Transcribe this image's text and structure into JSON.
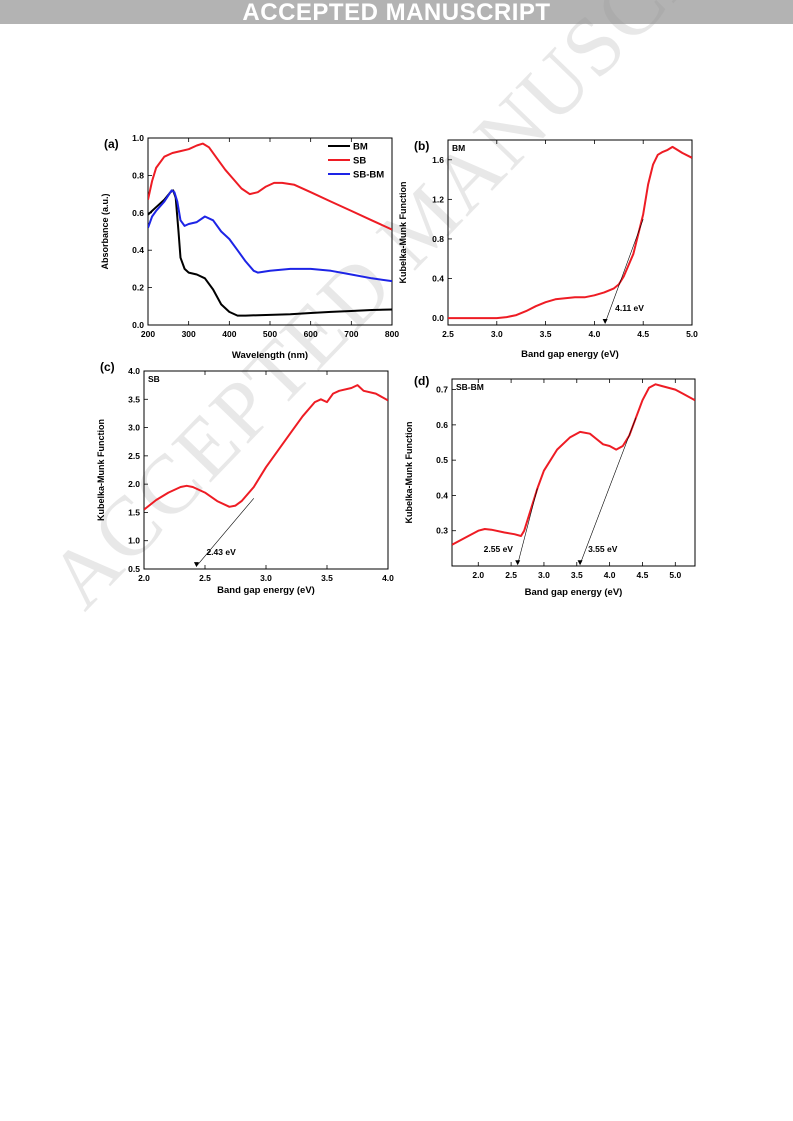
{
  "banner": "ACCEPTED MANUSCRIPT",
  "watermark": "ACCEPTED MANUSCRIPT",
  "colors": {
    "BM": "#000000",
    "SB": "#ee1c24",
    "SB-BM": "#1d24e6"
  },
  "chart_data": [
    {
      "panel": "(a)",
      "type": "line",
      "xlabel": "Wavelength (nm)",
      "ylabel": "Absorbance (a.u.)",
      "xlim": [
        200,
        800
      ],
      "ylim": [
        0.0,
        1.0
      ],
      "xticks": [
        200,
        300,
        400,
        500,
        600,
        700,
        800
      ],
      "xtick_labels": [
        "200",
        "300",
        "400",
        "500",
        "600",
        "700",
        "800"
      ],
      "yticks": [
        0.0,
        0.2,
        0.4,
        0.6,
        0.8,
        1.0
      ],
      "ytick_labels": [
        "0.0",
        "0.2",
        "0.4",
        "0.6",
        "0.8",
        "1.0"
      ],
      "legend": "top-right",
      "series": [
        {
          "name": "BM",
          "color": "#000000",
          "x": [
            200,
            210,
            220,
            240,
            255,
            262,
            268,
            275,
            280,
            290,
            300,
            320,
            340,
            360,
            380,
            400,
            420,
            440,
            480,
            550,
            600,
            650,
            700,
            750,
            800
          ],
          "y": [
            0.59,
            0.61,
            0.63,
            0.67,
            0.71,
            0.72,
            0.68,
            0.5,
            0.36,
            0.3,
            0.28,
            0.27,
            0.25,
            0.19,
            0.11,
            0.07,
            0.05,
            0.05,
            0.053,
            0.058,
            0.064,
            0.07,
            0.075,
            0.08,
            0.083
          ]
        },
        {
          "name": "SB",
          "color": "#ee1c24",
          "x": [
            200,
            210,
            220,
            240,
            260,
            280,
            300,
            320,
            335,
            350,
            370,
            390,
            410,
            430,
            450,
            470,
            490,
            510,
            530,
            560,
            600,
            650,
            700,
            750,
            800
          ],
          "y": [
            0.67,
            0.77,
            0.84,
            0.9,
            0.92,
            0.93,
            0.94,
            0.96,
            0.97,
            0.95,
            0.89,
            0.83,
            0.78,
            0.73,
            0.7,
            0.71,
            0.74,
            0.76,
            0.76,
            0.75,
            0.71,
            0.66,
            0.61,
            0.56,
            0.51
          ]
        },
        {
          "name": "SB-BM",
          "color": "#1d24e6",
          "x": [
            200,
            210,
            220,
            240,
            258,
            265,
            272,
            280,
            290,
            300,
            320,
            340,
            360,
            380,
            400,
            420,
            440,
            460,
            470,
            500,
            550,
            600,
            650,
            700,
            750,
            800
          ],
          "y": [
            0.52,
            0.58,
            0.61,
            0.66,
            0.72,
            0.71,
            0.66,
            0.56,
            0.53,
            0.54,
            0.55,
            0.58,
            0.56,
            0.5,
            0.46,
            0.4,
            0.34,
            0.29,
            0.28,
            0.29,
            0.3,
            0.3,
            0.29,
            0.27,
            0.25,
            0.235
          ]
        }
      ]
    },
    {
      "panel": "(b)",
      "label": "BM",
      "type": "line",
      "xlabel": "Band gap energy (eV)",
      "ylabel": "Kubelka-Munk Function",
      "xlim": [
        2.5,
        5.0
      ],
      "ylim": [
        -0.07,
        1.8
      ],
      "xticks": [
        2.5,
        3.0,
        3.5,
        4.0,
        4.5,
        5.0
      ],
      "xtick_labels": [
        "2.5",
        "3.0",
        "3.5",
        "4.0",
        "4.5",
        "5.0"
      ],
      "yticks": [
        0.0,
        0.4,
        0.8,
        1.2,
        1.6
      ],
      "ytick_labels": [
        "0.0",
        "0.4",
        "0.8",
        "1.2",
        "1.6"
      ],
      "annotations": [
        {
          "text": "4.11 eV",
          "x": 4.11
        }
      ],
      "tangents": [
        {
          "from": [
            4.11,
            -0.05
          ],
          "to": [
            4.5,
            1.0
          ]
        }
      ],
      "series": [
        {
          "name": "",
          "color": "#ee1c24",
          "x": [
            2.5,
            2.8,
            3.0,
            3.1,
            3.2,
            3.3,
            3.4,
            3.5,
            3.6,
            3.7,
            3.8,
            3.9,
            4.0,
            4.1,
            4.2,
            4.25,
            4.3,
            4.4,
            4.5,
            4.55,
            4.6,
            4.65,
            4.7,
            4.75,
            4.8,
            4.85,
            4.9,
            5.0
          ],
          "y": [
            0.0,
            0.0,
            0.0,
            0.01,
            0.03,
            0.07,
            0.12,
            0.16,
            0.19,
            0.2,
            0.21,
            0.21,
            0.23,
            0.26,
            0.3,
            0.34,
            0.42,
            0.65,
            1.05,
            1.35,
            1.55,
            1.65,
            1.68,
            1.7,
            1.73,
            1.7,
            1.67,
            1.62
          ]
        }
      ]
    },
    {
      "panel": "(c)",
      "label": "SB",
      "type": "line",
      "xlabel": "Band gap energy (eV)",
      "ylabel": "Kubelka-Munk Function",
      "xlim": [
        2.0,
        4.0
      ],
      "ylim": [
        0.5,
        4.0
      ],
      "xticks": [
        2.0,
        2.5,
        3.0,
        3.5,
        4.0
      ],
      "xtick_labels": [
        "2.0",
        "2.5",
        "3.0",
        "3.5",
        "4.0"
      ],
      "yticks": [
        0.5,
        1.0,
        1.5,
        2.0,
        2.5,
        3.0,
        3.5,
        4.0
      ],
      "ytick_labels": [
        "0.5",
        "1.0",
        "1.5",
        "2.0",
        "2.5",
        "3.0",
        "3.5",
        "4.0"
      ],
      "annotations": [
        {
          "text": "2.43 eV",
          "x": 2.43
        }
      ],
      "tangents": [
        {
          "from": [
            2.43,
            0.55
          ],
          "to": [
            2.9,
            1.75
          ]
        }
      ],
      "series": [
        {
          "name": "",
          "color": "#ee1c24",
          "x": [
            2.0,
            2.1,
            2.2,
            2.3,
            2.35,
            2.4,
            2.5,
            2.6,
            2.7,
            2.75,
            2.8,
            2.9,
            3.0,
            3.1,
            3.2,
            3.3,
            3.4,
            3.45,
            3.5,
            3.55,
            3.6,
            3.7,
            3.75,
            3.8,
            3.9,
            4.0
          ],
          "y": [
            1.55,
            1.72,
            1.85,
            1.95,
            1.97,
            1.95,
            1.85,
            1.7,
            1.6,
            1.62,
            1.7,
            1.95,
            2.3,
            2.6,
            2.9,
            3.2,
            3.45,
            3.5,
            3.45,
            3.6,
            3.65,
            3.7,
            3.75,
            3.65,
            3.6,
            3.48
          ]
        }
      ]
    },
    {
      "panel": "(d)",
      "label": "SB-BM",
      "type": "line",
      "xlabel": "Band gap energy (eV)",
      "ylabel": "Kubelka-Munk Function",
      "xlim": [
        1.6,
        5.3
      ],
      "ylim": [
        0.2,
        0.73
      ],
      "xticks": [
        2.0,
        2.5,
        3.0,
        3.5,
        4.0,
        4.5,
        5.0
      ],
      "xtick_labels": [
        "2.0",
        "2.5",
        "3.0",
        "3.5",
        "4.0",
        "4.5",
        "5.0"
      ],
      "yticks": [
        0.3,
        0.4,
        0.5,
        0.6,
        0.7
      ],
      "ytick_labels": [
        "0.3",
        "0.4",
        "0.5",
        "0.6",
        "0.7"
      ],
      "annotations": [
        {
          "text": "2.55 eV",
          "x": 2.6
        },
        {
          "text": "3.55 eV",
          "x": 3.55
        }
      ],
      "tangents": [
        {
          "from": [
            2.6,
            0.205
          ],
          "to": [
            2.9,
            0.42
          ]
        },
        {
          "from": [
            3.55,
            0.205
          ],
          "to": [
            4.4,
            0.62
          ]
        }
      ],
      "series": [
        {
          "name": "",
          "color": "#ee1c24",
          "x": [
            1.6,
            1.8,
            2.0,
            2.1,
            2.2,
            2.4,
            2.55,
            2.65,
            2.7,
            2.8,
            2.9,
            3.0,
            3.2,
            3.4,
            3.55,
            3.7,
            3.8,
            3.9,
            4.0,
            4.1,
            4.2,
            4.3,
            4.4,
            4.5,
            4.6,
            4.7,
            4.8,
            5.0,
            5.1,
            5.3
          ],
          "y": [
            0.26,
            0.28,
            0.3,
            0.305,
            0.303,
            0.295,
            0.29,
            0.285,
            0.3,
            0.36,
            0.42,
            0.47,
            0.53,
            0.565,
            0.58,
            0.575,
            0.56,
            0.545,
            0.54,
            0.53,
            0.54,
            0.57,
            0.62,
            0.67,
            0.705,
            0.715,
            0.71,
            0.7,
            0.69,
            0.67
          ]
        }
      ]
    }
  ]
}
